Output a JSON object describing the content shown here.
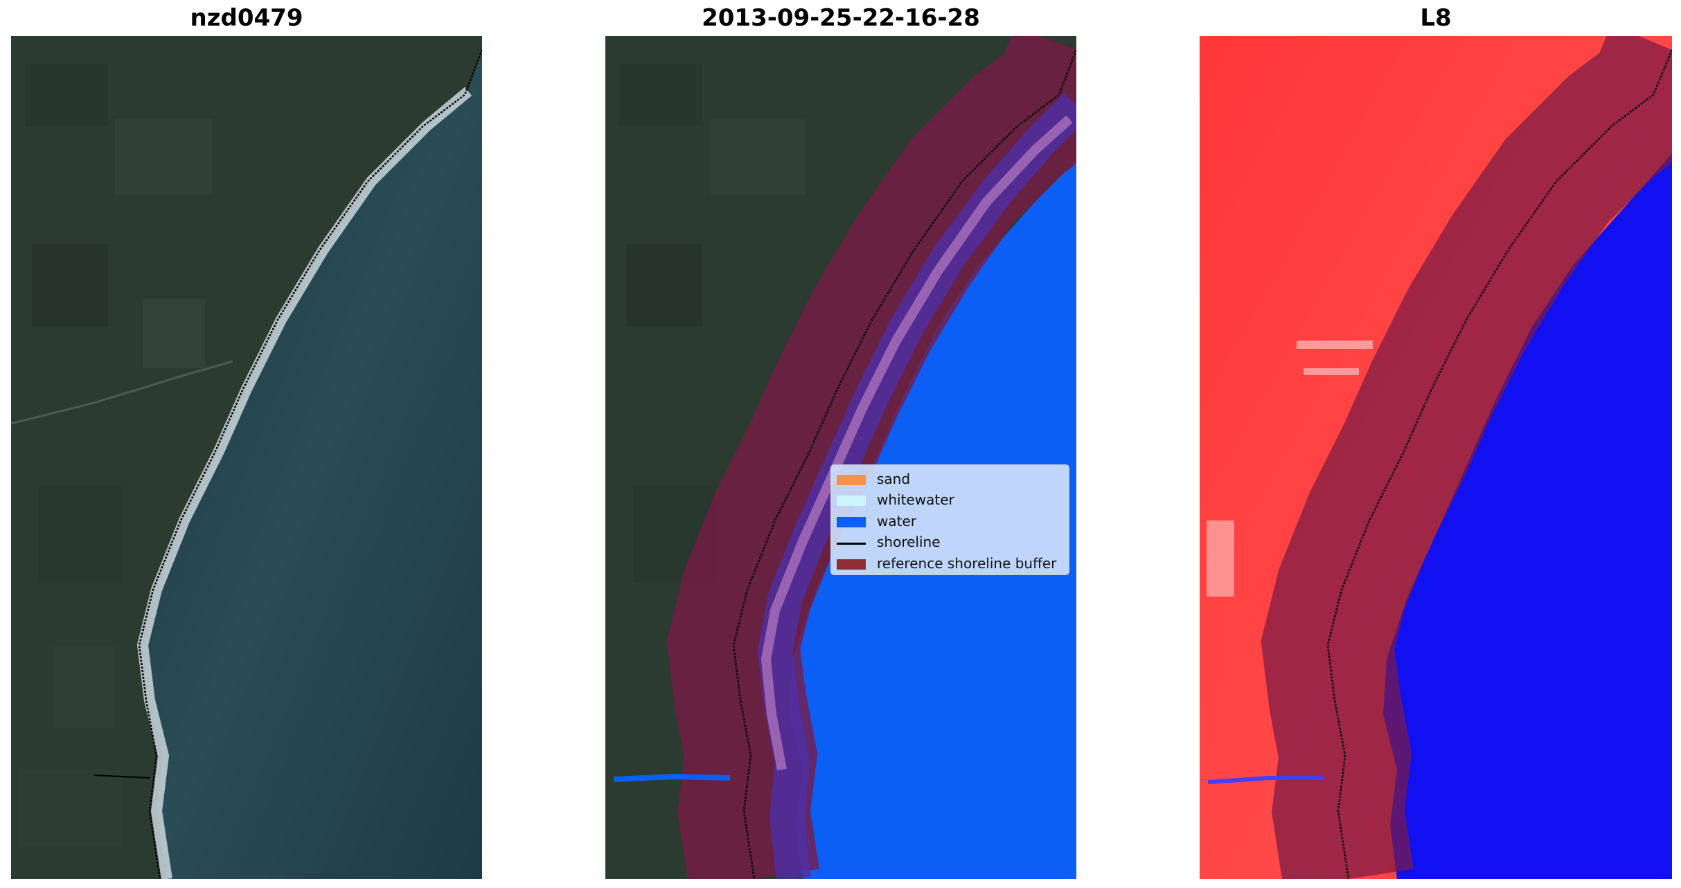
{
  "panels": [
    {
      "title": "nzd0479"
    },
    {
      "title": "2013-09-25-22-16-28"
    },
    {
      "title": "L8"
    }
  ],
  "legend": {
    "items": [
      {
        "label": "sand",
        "color": "#f7924a",
        "kind": "patch"
      },
      {
        "label": "whitewater",
        "color": "#ccf5ff",
        "kind": "patch"
      },
      {
        "label": "water",
        "color": "#0b5ff5",
        "kind": "patch"
      },
      {
        "label": "shoreline",
        "color": "#000000",
        "kind": "line"
      },
      {
        "label": "reference shoreline buffer",
        "color": "#8e2e35",
        "kind": "patch"
      }
    ]
  },
  "colors": {
    "land": "#2b3b30",
    "sea": "#1d3b48",
    "water_class": "#0b5ff5",
    "buffer": "#7a1a3a",
    "ndwi_land": "#ff3b3b",
    "ndwi_water": "#1010f0",
    "surf": "#e8f2f6"
  }
}
